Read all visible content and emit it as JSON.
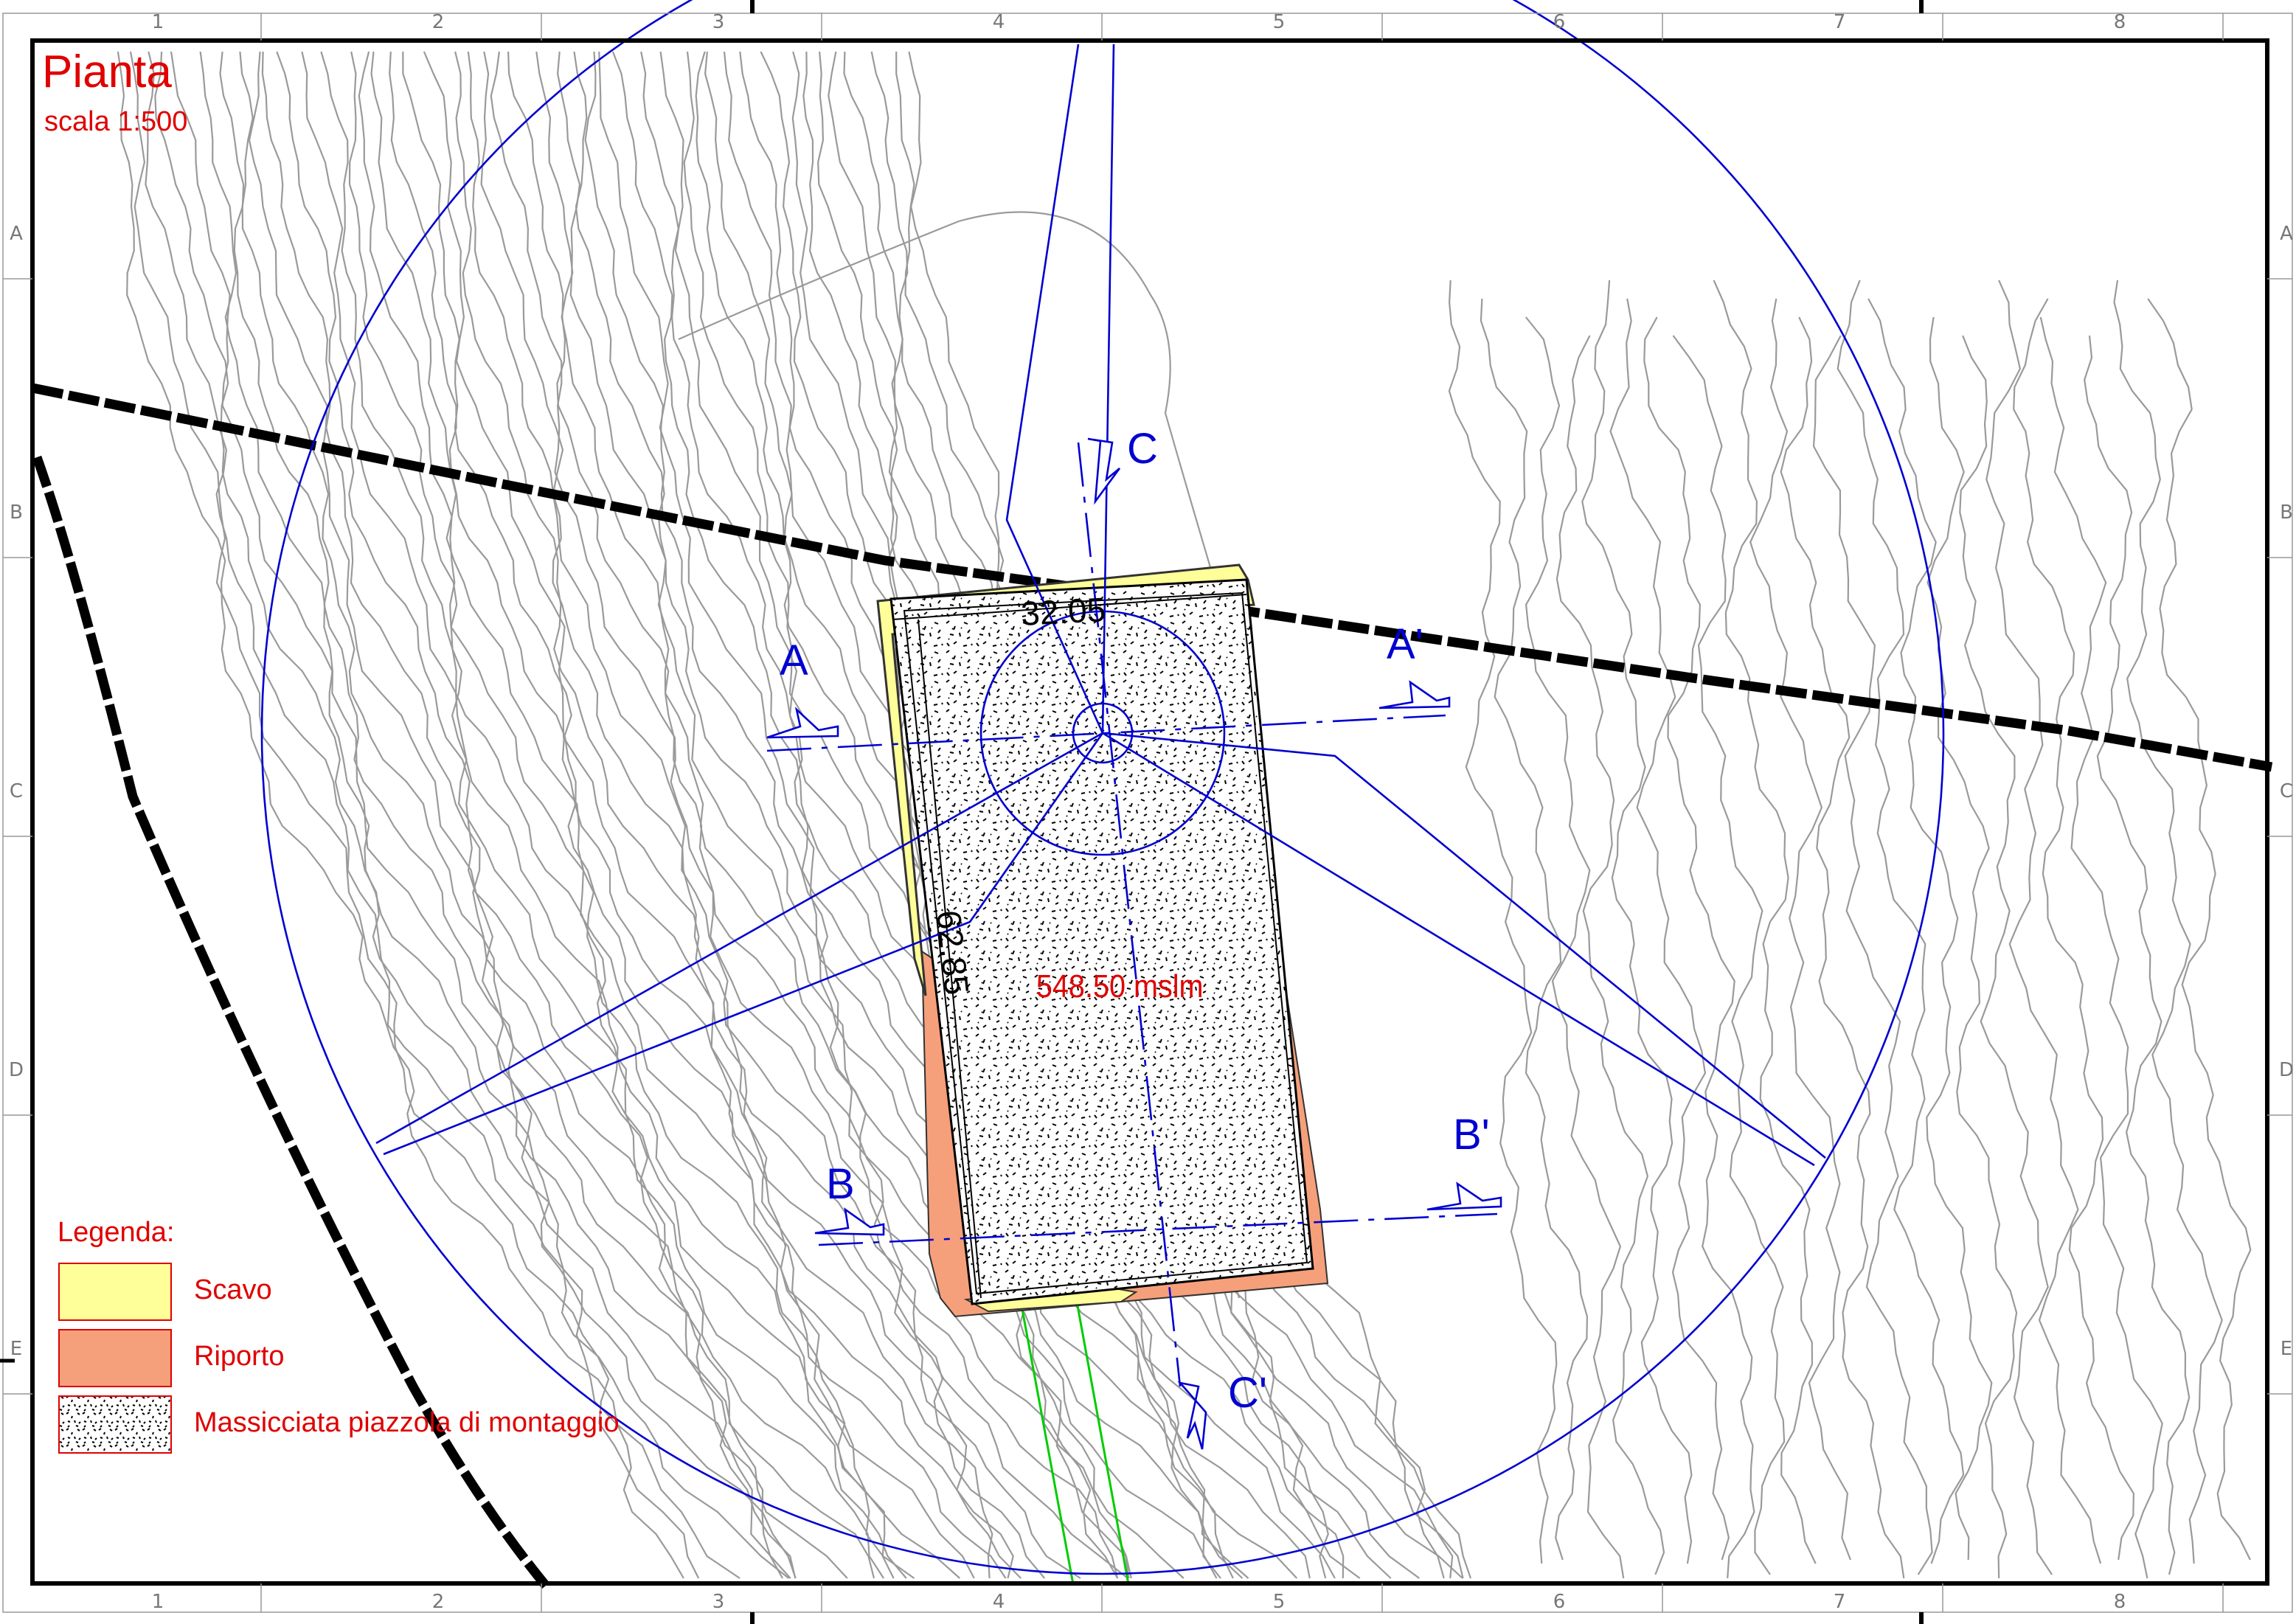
{
  "title": "Pianta",
  "scale": "scala 1:500",
  "grid": {
    "columns": [
      "1",
      "2",
      "3",
      "4",
      "5",
      "6",
      "7",
      "8"
    ],
    "rows": [
      "A",
      "B",
      "C",
      "D",
      "E"
    ]
  },
  "sections": {
    "A": "A",
    "A_prime": "A'",
    "B": "B",
    "B_prime": "B'",
    "C": "C",
    "C_prime": "C'"
  },
  "dimensions": {
    "width": "32.05",
    "length": "62.85"
  },
  "elevation": "548.50 mslm",
  "legend": {
    "heading": "Legenda:",
    "items": [
      {
        "label": "Scavo",
        "color": "#ffff99",
        "border": "#e00000"
      },
      {
        "label": "Riporto",
        "color": "#f5a07a",
        "border": "#e00000"
      },
      {
        "label": "Massicciata piazzola di montaggio",
        "pattern": "stipple",
        "border": "#e00000"
      }
    ]
  },
  "colors": {
    "annotation": "#e00000",
    "section_lines": "#0000d0",
    "contours": "#9a9a9a",
    "access_road": "#00cc00",
    "frame": "#000000"
  }
}
